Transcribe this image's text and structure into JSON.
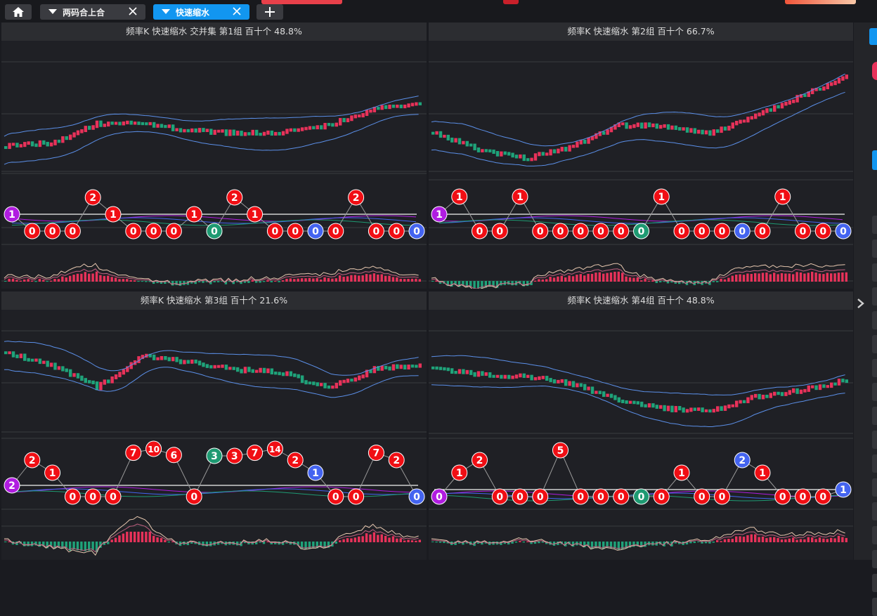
{
  "tabs": [
    {
      "label": "两码合上合",
      "active": false
    },
    {
      "label": "快速缩水",
      "active": true
    }
  ],
  "icons": {
    "home": "home-icon",
    "dropdown": "caret-down-icon",
    "close": "close-icon",
    "add": "plus-icon",
    "expand": "chevron-right-icon"
  },
  "colors": {
    "up": "#e8325a",
    "down": "#1fa37a",
    "band": "#5b8fe8",
    "ball_red": "#f00e14",
    "ball_blue": "#4464f0",
    "ball_green": "#1e9a72",
    "ball_purple": "#b01ce0",
    "tab_active": "#1296f0"
  },
  "panels": [
    {
      "title": "频率K  快速缩水  交并集 第1组  百十个  48.8%",
      "balls": [
        "1",
        "0",
        "0",
        "0",
        "2",
        "1",
        "0",
        "0",
        "0",
        "1",
        "0",
        "2",
        "1",
        "0",
        "0",
        "0",
        "0",
        "2",
        "0",
        "0",
        "0"
      ],
      "ball_colors": [
        "purple",
        "red",
        "red",
        "red",
        "red",
        "red",
        "red",
        "red",
        "red",
        "red",
        "green",
        "red",
        "red",
        "red",
        "red",
        "blue",
        "red",
        "red",
        "red",
        "red",
        "blue"
      ]
    },
    {
      "title": "频率K  快速缩水  第2组  百十个  66.7%",
      "balls": [
        "1",
        "1",
        "0",
        "0",
        "1",
        "0",
        "0",
        "0",
        "0",
        "0",
        "0",
        "1",
        "0",
        "0",
        "0",
        "0",
        "0",
        "1",
        "0",
        "0",
        "0"
      ],
      "ball_colors": [
        "purple",
        "red",
        "red",
        "red",
        "red",
        "red",
        "red",
        "red",
        "red",
        "red",
        "green",
        "red",
        "red",
        "red",
        "red",
        "blue",
        "red",
        "red",
        "red",
        "red",
        "blue"
      ]
    },
    {
      "title": "频率K  快速缩水  第3组  百十个  21.6%",
      "balls": [
        "2",
        "2",
        "1",
        "0",
        "0",
        "0",
        "7",
        "10",
        "6",
        "0",
        "3",
        "3",
        "7",
        "14",
        "2",
        "1",
        "0",
        "0",
        "7",
        "2",
        "0"
      ],
      "ball_colors": [
        "purple",
        "red",
        "red",
        "red",
        "red",
        "red",
        "red",
        "red",
        "red",
        "red",
        "green",
        "red",
        "red",
        "red",
        "red",
        "blue",
        "red",
        "red",
        "red",
        "red",
        "blue"
      ]
    },
    {
      "title": "频率K  快速缩水  第4组  百十个  48.8%",
      "balls": [
        "0",
        "1",
        "2",
        "0",
        "0",
        "0",
        "5",
        "0",
        "0",
        "0",
        "0",
        "0",
        "1",
        "0",
        "0",
        "2",
        "1",
        "0",
        "0",
        "0",
        "1"
      ],
      "ball_colors": [
        "purple",
        "red",
        "red",
        "red",
        "red",
        "red",
        "red",
        "red",
        "red",
        "red",
        "green",
        "red",
        "red",
        "red",
        "red",
        "blue",
        "red",
        "red",
        "red",
        "red",
        "blue"
      ]
    }
  ]
}
